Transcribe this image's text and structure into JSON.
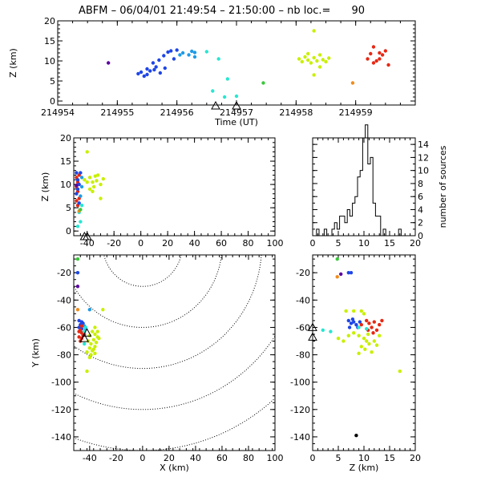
{
  "title": {
    "prefix": "ABFM – 06/04/01 21:49:54 – 21:50:00 – nb loc.=",
    "count": "90"
  },
  "colors": {
    "c_violet": "#5a00a0",
    "c_blue": "#1e46e6",
    "c_sky": "#1e9be6",
    "c_cyan": "#28e6d2",
    "c_green": "#3cc83c",
    "c_lime": "#c8f000",
    "c_orange": "#f08c1e",
    "c_red": "#e62814",
    "c_black": "#000000"
  },
  "chart_data": [
    {
      "id": "time_height",
      "type": "scatter",
      "xlabel": "Time (UT)",
      "ylabel": "Z (km)",
      "xlim": [
        214954,
        214960
      ],
      "ylim": [
        -1,
        20
      ],
      "xticks": [
        "214954",
        "214955",
        "214956",
        "214957",
        "214958",
        "214959"
      ],
      "yticks": [
        "0",
        "5",
        "10",
        "15",
        "20"
      ],
      "stations": [
        214956.65,
        214957.0
      ],
      "points": [
        [
          214954.85,
          9.5,
          "c_violet"
        ],
        [
          214955.35,
          6.8,
          "c_blue"
        ],
        [
          214955.4,
          7.2,
          "c_blue"
        ],
        [
          214955.45,
          6.2,
          "c_blue"
        ],
        [
          214955.5,
          8.0,
          "c_blue"
        ],
        [
          214955.55,
          7.5,
          "c_blue"
        ],
        [
          214955.6,
          9.5,
          "c_blue"
        ],
        [
          214955.65,
          8.5,
          "c_blue"
        ],
        [
          214955.7,
          10.2,
          "c_blue"
        ],
        [
          214955.72,
          7.0,
          "c_blue"
        ],
        [
          214955.78,
          11.3,
          "c_blue"
        ],
        [
          214955.8,
          8.2,
          "c_blue"
        ],
        [
          214955.85,
          12.2,
          "c_blue"
        ],
        [
          214955.9,
          12.5,
          "c_blue"
        ],
        [
          214955.95,
          10.5,
          "c_blue"
        ],
        [
          214956.0,
          12.7,
          "c_blue"
        ],
        [
          214955.5,
          6.6,
          "c_blue"
        ],
        [
          214955.62,
          7.8,
          "c_blue"
        ],
        [
          214956.1,
          12.0,
          "c_sky"
        ],
        [
          214956.2,
          11.5,
          "c_sky"
        ],
        [
          214956.25,
          12.4,
          "c_sky"
        ],
        [
          214956.3,
          12.1,
          "c_sky"
        ],
        [
          214956.3,
          11.0,
          "c_sky"
        ],
        [
          214956.05,
          11.5,
          "c_sky"
        ],
        [
          214956.5,
          12.3,
          "c_cyan"
        ],
        [
          214956.7,
          10.5,
          "c_cyan"
        ],
        [
          214956.6,
          2.5,
          "c_cyan"
        ],
        [
          214956.85,
          5.5,
          "c_cyan"
        ],
        [
          214956.8,
          1.0,
          "c_cyan"
        ],
        [
          214957.0,
          1.2,
          "c_cyan"
        ],
        [
          214957.45,
          4.5,
          "c_green"
        ],
        [
          214958.05,
          10.5,
          "c_lime"
        ],
        [
          214958.1,
          9.8,
          "c_lime"
        ],
        [
          214958.15,
          11.0,
          "c_lime"
        ],
        [
          214958.2,
          10.2,
          "c_lime"
        ],
        [
          214958.25,
          9.5,
          "c_lime"
        ],
        [
          214958.3,
          10.8,
          "c_lime"
        ],
        [
          214958.3,
          17.5,
          "c_lime"
        ],
        [
          214958.35,
          10.0,
          "c_lime"
        ],
        [
          214958.4,
          11.5,
          "c_lime"
        ],
        [
          214958.45,
          10.3,
          "c_lime"
        ],
        [
          214958.5,
          9.8,
          "c_lime"
        ],
        [
          214958.55,
          10.7,
          "c_lime"
        ],
        [
          214958.2,
          11.8,
          "c_lime"
        ],
        [
          214958.3,
          6.5,
          "c_lime"
        ],
        [
          214958.4,
          8.5,
          "c_lime"
        ],
        [
          214958.95,
          4.5,
          "c_orange"
        ],
        [
          214959.2,
          10.5,
          "c_red"
        ],
        [
          214959.25,
          11.8,
          "c_red"
        ],
        [
          214959.3,
          13.5,
          "c_red"
        ],
        [
          214959.35,
          10.0,
          "c_red"
        ],
        [
          214959.4,
          12.0,
          "c_red"
        ],
        [
          214959.45,
          11.5,
          "c_red"
        ],
        [
          214959.5,
          12.5,
          "c_red"
        ],
        [
          214959.55,
          9.0,
          "c_red"
        ],
        [
          214959.3,
          9.5,
          "c_red"
        ],
        [
          214959.4,
          10.5,
          "c_red"
        ]
      ]
    },
    {
      "id": "x_height",
      "type": "scatter",
      "xlim": [
        -50,
        100
      ],
      "ylim": [
        -1,
        20
      ],
      "xticks": [
        "-40",
        "-20",
        "0",
        "20",
        "40",
        "60",
        "80",
        "100"
      ],
      "yticks": [
        "0",
        "5",
        "10",
        "15",
        "20"
      ],
      "ylabel": "Z (km)",
      "stations": [
        -42,
        -40
      ],
      "points": [
        [
          -48,
          11.5,
          "c_red"
        ],
        [
          -47,
          10.5,
          "c_red"
        ],
        [
          -46,
          12.0,
          "c_red"
        ],
        [
          -48,
          9.5,
          "c_red"
        ],
        [
          -47,
          8.5,
          "c_red"
        ],
        [
          -46,
          7.0,
          "c_red"
        ],
        [
          -48,
          6.5,
          "c_red"
        ],
        [
          -47,
          5.5,
          "c_red"
        ],
        [
          -48,
          12.5,
          "c_blue"
        ],
        [
          -47,
          11.0,
          "c_blue"
        ],
        [
          -46,
          10.0,
          "c_blue"
        ],
        [
          -47,
          9.0,
          "c_blue"
        ],
        [
          -48,
          8.0,
          "c_blue"
        ],
        [
          -46,
          6.0,
          "c_blue"
        ],
        [
          -45,
          12.5,
          "c_blue"
        ],
        [
          -44,
          11.5,
          "c_sky"
        ],
        [
          -44,
          9.5,
          "c_sky"
        ],
        [
          -45,
          7.5,
          "c_sky"
        ],
        [
          -46,
          4.0,
          "c_cyan"
        ],
        [
          -45,
          2.0,
          "c_cyan"
        ],
        [
          -47,
          1.0,
          "c_cyan"
        ],
        [
          -44,
          5.5,
          "c_cyan"
        ],
        [
          -40,
          17.0,
          "c_lime"
        ],
        [
          -42,
          11.0,
          "c_lime"
        ],
        [
          -40,
          10.5,
          "c_lime"
        ],
        [
          -38,
          11.5,
          "c_lime"
        ],
        [
          -36,
          10.5,
          "c_lime"
        ],
        [
          -35,
          9.5,
          "c_lime"
        ],
        [
          -33,
          10.8,
          "c_lime"
        ],
        [
          -30,
          10.0,
          "c_lime"
        ],
        [
          -28,
          11.2,
          "c_lime"
        ],
        [
          -38,
          9.0,
          "c_lime"
        ],
        [
          -34,
          11.8,
          "c_lime"
        ],
        [
          -30,
          7.0,
          "c_lime"
        ],
        [
          -32,
          12.0,
          "c_lime"
        ],
        [
          -36,
          8.5,
          "c_lime"
        ],
        [
          -46,
          4.3,
          "c_orange"
        ],
        [
          -48,
          9.8,
          "c_violet"
        ],
        [
          -45,
          4.6,
          "c_green"
        ]
      ]
    },
    {
      "id": "height_histogram",
      "type": "bar",
      "xlim": [
        0,
        20
      ],
      "ylim": [
        0,
        15
      ],
      "xticks": [
        "0",
        "5",
        "10",
        "15",
        "20"
      ],
      "yticks": [
        "0",
        "2",
        "4",
        "6",
        "8",
        "10",
        "12",
        "14"
      ],
      "ylabel": "number of sources",
      "bin_width": 0.5,
      "bins": [
        [
          1.0,
          1
        ],
        [
          1.5,
          0
        ],
        [
          2.0,
          0
        ],
        [
          2.5,
          1
        ],
        [
          3.0,
          0
        ],
        [
          3.5,
          0
        ],
        [
          4.0,
          1
        ],
        [
          4.5,
          2
        ],
        [
          5.0,
          1
        ],
        [
          5.5,
          3
        ],
        [
          6.0,
          3
        ],
        [
          6.5,
          2
        ],
        [
          7.0,
          4
        ],
        [
          7.5,
          3
        ],
        [
          8.0,
          5
        ],
        [
          8.5,
          6
        ],
        [
          9.0,
          9
        ],
        [
          9.5,
          10
        ],
        [
          10.0,
          15
        ],
        [
          10.5,
          17
        ],
        [
          11.0,
          11
        ],
        [
          11.5,
          12
        ],
        [
          12.0,
          5
        ],
        [
          12.5,
          3
        ],
        [
          13.0,
          3
        ],
        [
          13.5,
          0
        ],
        [
          14.0,
          1
        ],
        [
          14.5,
          0
        ],
        [
          15.0,
          0
        ],
        [
          15.5,
          0
        ],
        [
          16.0,
          0
        ],
        [
          16.5,
          0
        ],
        [
          17.0,
          1
        ]
      ]
    },
    {
      "id": "plan_view",
      "type": "scatter",
      "xlabel": "X (km)",
      "ylabel": "Y (km)",
      "xlim": [
        -52,
        100
      ],
      "ylim": [
        -150,
        -7
      ],
      "xticks": [
        "-40",
        "-20",
        "0",
        "20",
        "40",
        "60",
        "80",
        "100"
      ],
      "yticks": [
        "-20",
        "-40",
        "-60",
        "-80",
        "-100",
        "-120",
        "-140"
      ],
      "range_rings": [
        30,
        60,
        90,
        120,
        150
      ],
      "stations": [
        [
          -42,
          -64
        ],
        [
          -44,
          -68
        ]
      ],
      "points": [
        [
          -49,
          -10,
          "c_green"
        ],
        [
          -49,
          -20,
          "c_blue"
        ],
        [
          -49,
          -30,
          "c_violet"
        ],
        [
          -49,
          -47,
          "c_orange"
        ],
        [
          -40,
          -47,
          "c_sky"
        ],
        [
          -30,
          -47,
          "c_lime"
        ],
        [
          -48,
          -55,
          "c_blue"
        ],
        [
          -46,
          -56,
          "c_blue"
        ],
        [
          -47,
          -58,
          "c_blue"
        ],
        [
          -45,
          -57,
          "c_blue"
        ],
        [
          -48,
          -60,
          "c_blue"
        ],
        [
          -46,
          -61,
          "c_blue"
        ],
        [
          -44,
          -59,
          "c_sky"
        ],
        [
          -43,
          -61,
          "c_sky"
        ],
        [
          -48,
          -63,
          "c_red"
        ],
        [
          -46,
          -64,
          "c_red"
        ],
        [
          -47,
          -62,
          "c_red"
        ],
        [
          -45,
          -66,
          "c_red"
        ],
        [
          -48,
          -67,
          "c_red"
        ],
        [
          -46,
          -68,
          "c_red"
        ],
        [
          -44,
          -65,
          "c_red"
        ],
        [
          -47,
          -70,
          "c_red"
        ],
        [
          -46,
          -59,
          "c_red"
        ],
        [
          -44,
          -63,
          "c_cyan"
        ],
        [
          -43,
          -60,
          "c_cyan"
        ],
        [
          -44,
          -72,
          "c_cyan"
        ],
        [
          -36,
          -60,
          "c_lime"
        ],
        [
          -38,
          -63,
          "c_lime"
        ],
        [
          -36,
          -65,
          "c_lime"
        ],
        [
          -40,
          -66,
          "c_lime"
        ],
        [
          -34,
          -67,
          "c_lime"
        ],
        [
          -37,
          -69,
          "c_lime"
        ],
        [
          -35,
          -71,
          "c_lime"
        ],
        [
          -39,
          -72,
          "c_lime"
        ],
        [
          -36,
          -74,
          "c_lime"
        ],
        [
          -40,
          -75,
          "c_lime"
        ],
        [
          -38,
          -77,
          "c_lime"
        ],
        [
          -42,
          -78,
          "c_lime"
        ],
        [
          -36,
          -79,
          "c_lime"
        ],
        [
          -40,
          -82,
          "c_lime"
        ],
        [
          -42,
          -92,
          "c_lime"
        ],
        [
          -34,
          -63,
          "c_lime"
        ],
        [
          -33,
          -68,
          "c_lime"
        ],
        [
          -41,
          -70,
          "c_lime"
        ],
        [
          -39,
          -80,
          "c_lime"
        ],
        [
          -37,
          -76,
          "c_lime"
        ]
      ]
    },
    {
      "id": "height_y",
      "type": "scatter",
      "xlabel": "Z (km)",
      "xlim": [
        0,
        20
      ],
      "ylim": [
        -150,
        -7
      ],
      "xticks": [
        "0",
        "5",
        "10",
        "15",
        "20"
      ],
      "yticks": [
        "-20",
        "-40",
        "-60",
        "-80",
        "-100",
        "-120",
        "-140"
      ],
      "stations": [
        [
          0,
          -60
        ],
        [
          0,
          -67
        ]
      ],
      "points": [
        [
          4.8,
          -10,
          "c_green"
        ],
        [
          4.8,
          -23,
          "c_orange"
        ],
        [
          7.0,
          -20,
          "c_blue"
        ],
        [
          7.5,
          -20,
          "c_blue"
        ],
        [
          5.5,
          -21,
          "c_violet"
        ],
        [
          7.0,
          -55,
          "c_blue"
        ],
        [
          7.5,
          -57,
          "c_blue"
        ],
        [
          8.0,
          -56,
          "c_blue"
        ],
        [
          8.5,
          -58,
          "c_blue"
        ],
        [
          7.2,
          -60,
          "c_blue"
        ],
        [
          8.8,
          -60,
          "c_blue"
        ],
        [
          9.2,
          -56,
          "c_blue"
        ],
        [
          7.8,
          -54,
          "c_blue"
        ],
        [
          6.5,
          -48,
          "c_lime"
        ],
        [
          8.0,
          -48,
          "c_lime"
        ],
        [
          9.5,
          -48,
          "c_lime"
        ],
        [
          10.0,
          -50,
          "c_lime"
        ],
        [
          10.5,
          -55,
          "c_red"
        ],
        [
          11.0,
          -57,
          "c_red"
        ],
        [
          12.0,
          -56,
          "c_red"
        ],
        [
          13.0,
          -58,
          "c_red"
        ],
        [
          11.5,
          -60,
          "c_red"
        ],
        [
          12.5,
          -62,
          "c_red"
        ],
        [
          13.5,
          -55,
          "c_red"
        ],
        [
          10.8,
          -62,
          "c_red"
        ],
        [
          11.8,
          -64,
          "c_red"
        ],
        [
          9.5,
          -58,
          "c_red"
        ],
        [
          9.0,
          -60,
          "c_cyan"
        ],
        [
          10.5,
          -61,
          "c_cyan"
        ],
        [
          2.0,
          -62,
          "c_cyan"
        ],
        [
          3.5,
          -63,
          "c_cyan"
        ],
        [
          5.0,
          -68,
          "c_lime"
        ],
        [
          6.0,
          -70,
          "c_lime"
        ],
        [
          8.0,
          -64,
          "c_lime"
        ],
        [
          9.0,
          -66,
          "c_lime"
        ],
        [
          10.0,
          -68,
          "c_lime"
        ],
        [
          10.5,
          -70,
          "c_lime"
        ],
        [
          11.0,
          -72,
          "c_lime"
        ],
        [
          9.5,
          -74,
          "c_lime"
        ],
        [
          10.2,
          -76,
          "c_lime"
        ],
        [
          11.5,
          -78,
          "c_lime"
        ],
        [
          12.0,
          -70,
          "c_lime"
        ],
        [
          12.5,
          -73,
          "c_lime"
        ],
        [
          9.0,
          -79,
          "c_lime"
        ],
        [
          7.0,
          -66,
          "c_lime"
        ],
        [
          13.0,
          -66,
          "c_lime"
        ],
        [
          17.0,
          -92,
          "c_lime"
        ],
        [
          10.8,
          -65,
          "c_lime"
        ],
        [
          8.5,
          -139,
          "c_black"
        ]
      ]
    }
  ]
}
